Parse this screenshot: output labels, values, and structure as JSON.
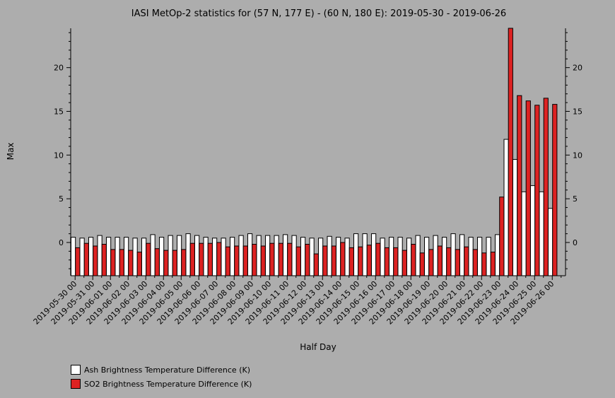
{
  "chart_data": {
    "type": "bar",
    "title": "IASI MetOp-2 statistics for (57 N, 177 E) - (60 N, 180 E): 2019-05-30 - 2019-06-26",
    "xlabel": "Half Day",
    "ylabel": "Max",
    "ylim": [
      -3.8,
      24.5
    ],
    "yticks": [
      0,
      5,
      10,
      15,
      20
    ],
    "categories": [
      "2019-05-30 00",
      "2019-05-30 12",
      "2019-05-31 00",
      "2019-05-31 12",
      "2019-06-01 00",
      "2019-06-01 12",
      "2019-06-02 00",
      "2019-06-02 12",
      "2019-06-03 00",
      "2019-06-03 12",
      "2019-06-04 00",
      "2019-06-04 12",
      "2019-06-05 00",
      "2019-06-05 12",
      "2019-06-06 00",
      "2019-06-06 12",
      "2019-06-07 00",
      "2019-06-07 12",
      "2019-06-08 00",
      "2019-06-08 12",
      "2019-06-09 00",
      "2019-06-09 12",
      "2019-06-10 00",
      "2019-06-10 12",
      "2019-06-11 00",
      "2019-06-11 12",
      "2019-06-12 00",
      "2019-06-12 12",
      "2019-06-13 00",
      "2019-06-13 12",
      "2019-06-14 00",
      "2019-06-14 12",
      "2019-06-15 00",
      "2019-06-15 12",
      "2019-06-16 00",
      "2019-06-16 12",
      "2019-06-17 00",
      "2019-06-17 12",
      "2019-06-18 00",
      "2019-06-18 12",
      "2019-06-19 00",
      "2019-06-19 12",
      "2019-06-20 00",
      "2019-06-20 12",
      "2019-06-21 00",
      "2019-06-21 12",
      "2019-06-22 00",
      "2019-06-22 12",
      "2019-06-23 00",
      "2019-06-23 12",
      "2019-06-24 00",
      "2019-06-24 12",
      "2019-06-25 00",
      "2019-06-25 12",
      "2019-06-26 00",
      "2019-06-26 12"
    ],
    "xtick_labels": [
      "2019-05-30 00",
      "2019-05-31 00",
      "2019-06-01 00",
      "2019-06-02 00",
      "2019-06-03 00",
      "2019-06-04 00",
      "2019-06-05 00",
      "2019-06-06 00",
      "2019-06-07 00",
      "2019-06-08 00",
      "2019-06-09 00",
      "2019-06-10 00",
      "2019-06-11 00",
      "2019-06-12 00",
      "2019-06-13 00",
      "2019-06-14 00",
      "2019-06-15 00",
      "2019-06-16 00",
      "2019-06-17 00",
      "2019-06-18 00",
      "2019-06-19 00",
      "2019-06-20 00",
      "2019-06-21 00",
      "2019-06-22 00",
      "2019-06-23 00",
      "2019-06-24 00",
      "2019-06-25 00",
      "2019-06-26 00"
    ],
    "series": [
      {
        "name": "Ash Brightness Temperature Difference (K)",
        "color": "#ffffff",
        "values": [
          0.6,
          0.5,
          0.6,
          0.8,
          0.6,
          0.6,
          0.6,
          0.5,
          0.5,
          0.9,
          0.6,
          0.8,
          0.8,
          1.0,
          0.8,
          0.6,
          0.5,
          0.5,
          0.6,
          0.8,
          1.0,
          0.8,
          0.8,
          0.8,
          0.9,
          0.8,
          0.6,
          0.5,
          0.5,
          0.7,
          0.6,
          0.5,
          1.0,
          1.0,
          1.0,
          0.5,
          0.6,
          0.6,
          0.5,
          0.8,
          0.6,
          0.8,
          0.6,
          1.0,
          0.9,
          0.6,
          0.6,
          0.6,
          0.9,
          11.8,
          9.5,
          5.8,
          6.5,
          5.8,
          3.9,
          null
        ]
      },
      {
        "name": "SO2 Brightness Temperature Difference (K)",
        "color": "#dd2222",
        "values": [
          -0.6,
          -0.1,
          -0.4,
          -0.2,
          -0.8,
          -0.8,
          -0.9,
          -1.1,
          -0.1,
          -0.7,
          -0.9,
          -0.9,
          -0.8,
          -0.1,
          -0.1,
          -0.1,
          0.0,
          -0.5,
          -0.4,
          -0.4,
          -0.2,
          -0.4,
          -0.1,
          -0.1,
          -0.1,
          -0.5,
          -0.2,
          -1.3,
          -0.4,
          -0.4,
          0.0,
          -0.6,
          -0.5,
          -0.3,
          -0.1,
          -0.6,
          -0.6,
          -0.9,
          -0.2,
          -1.2,
          -0.8,
          -0.4,
          -0.6,
          -0.8,
          -0.5,
          -0.8,
          -1.2,
          -1.1,
          5.2,
          24.5,
          16.8,
          16.2,
          15.7,
          16.5,
          15.8,
          null
        ]
      }
    ],
    "legend": {
      "position": "bottom-left",
      "items": [
        {
          "label": "Ash Brightness Temperature Difference (K)",
          "color": "#ffffff"
        },
        {
          "label": "SO2 Brightness Temperature Difference (K)",
          "color": "#dd2222"
        }
      ]
    },
    "grid": false
  }
}
